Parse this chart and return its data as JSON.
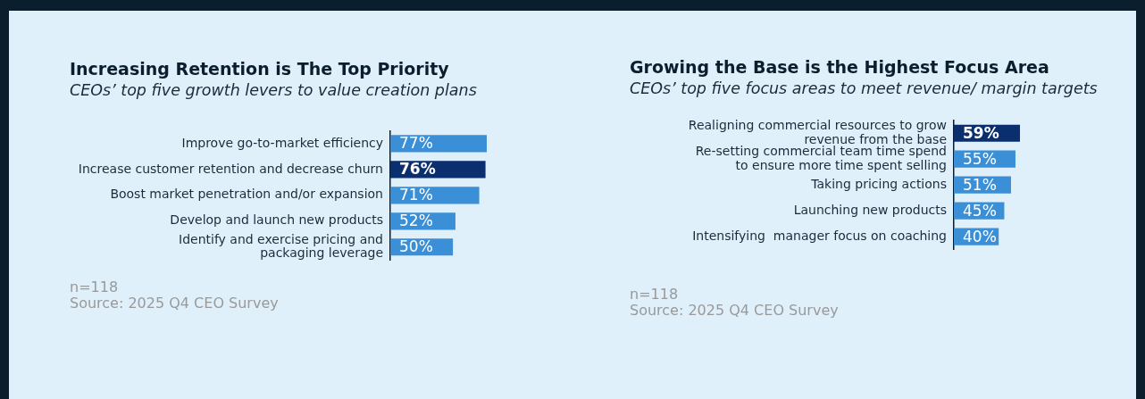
{
  "chart_data": [
    {
      "type": "bar",
      "orientation": "horizontal",
      "title": "Increasing Retention is The Top Priority",
      "subtitle": "CEOs’ top five growth levers to value creation plans",
      "categories": [
        "Improve go-to-market efficiency",
        "Increase customer retention and decrease churn",
        "Boost market penetration and/or expansion",
        "Develop and launch new products",
        "Identify and exercise pricing and\npackaging leverage"
      ],
      "values": [
        77,
        76,
        71,
        52,
        50
      ],
      "colors": [
        "#3a8fd6",
        "#0b2f6e",
        "#3a8fd6",
        "#3a8fd6",
        "#3a8fd6"
      ],
      "value_labels": [
        "77%",
        "76%",
        "71%",
        "52%",
        "50%"
      ],
      "grid": false,
      "legend": false,
      "tick_labels": "y",
      "annotations": [
        "n=118",
        "Source: 2025 Q4 CEO Survey"
      ]
    },
    {
      "type": "bar",
      "orientation": "horizontal",
      "title": "Growing the Base is the Highest Focus Area",
      "subtitle": "CEOs’ top five focus areas to meet revenue/ margin targets",
      "categories": [
        "Realigning commercial resources to grow\nrevenue from the base",
        "Re-setting commercial team time spend\nto ensure more time spent selling",
        "Taking pricing actions",
        "Launching new products",
        "Intensifying  manager focus on coaching"
      ],
      "values": [
        59,
        55,
        51,
        45,
        40
      ],
      "colors": [
        "#0b2f6e",
        "#3a8fd6",
        "#3a8fd6",
        "#3a8fd6",
        "#3a8fd6"
      ],
      "value_labels": [
        "59%",
        "55%",
        "51%",
        "45%",
        "40%"
      ],
      "grid": false,
      "legend": false,
      "tick_labels": "y",
      "annotations": [
        "n=118",
        "Source: 2025 Q4 CEO Survey"
      ]
    }
  ]
}
